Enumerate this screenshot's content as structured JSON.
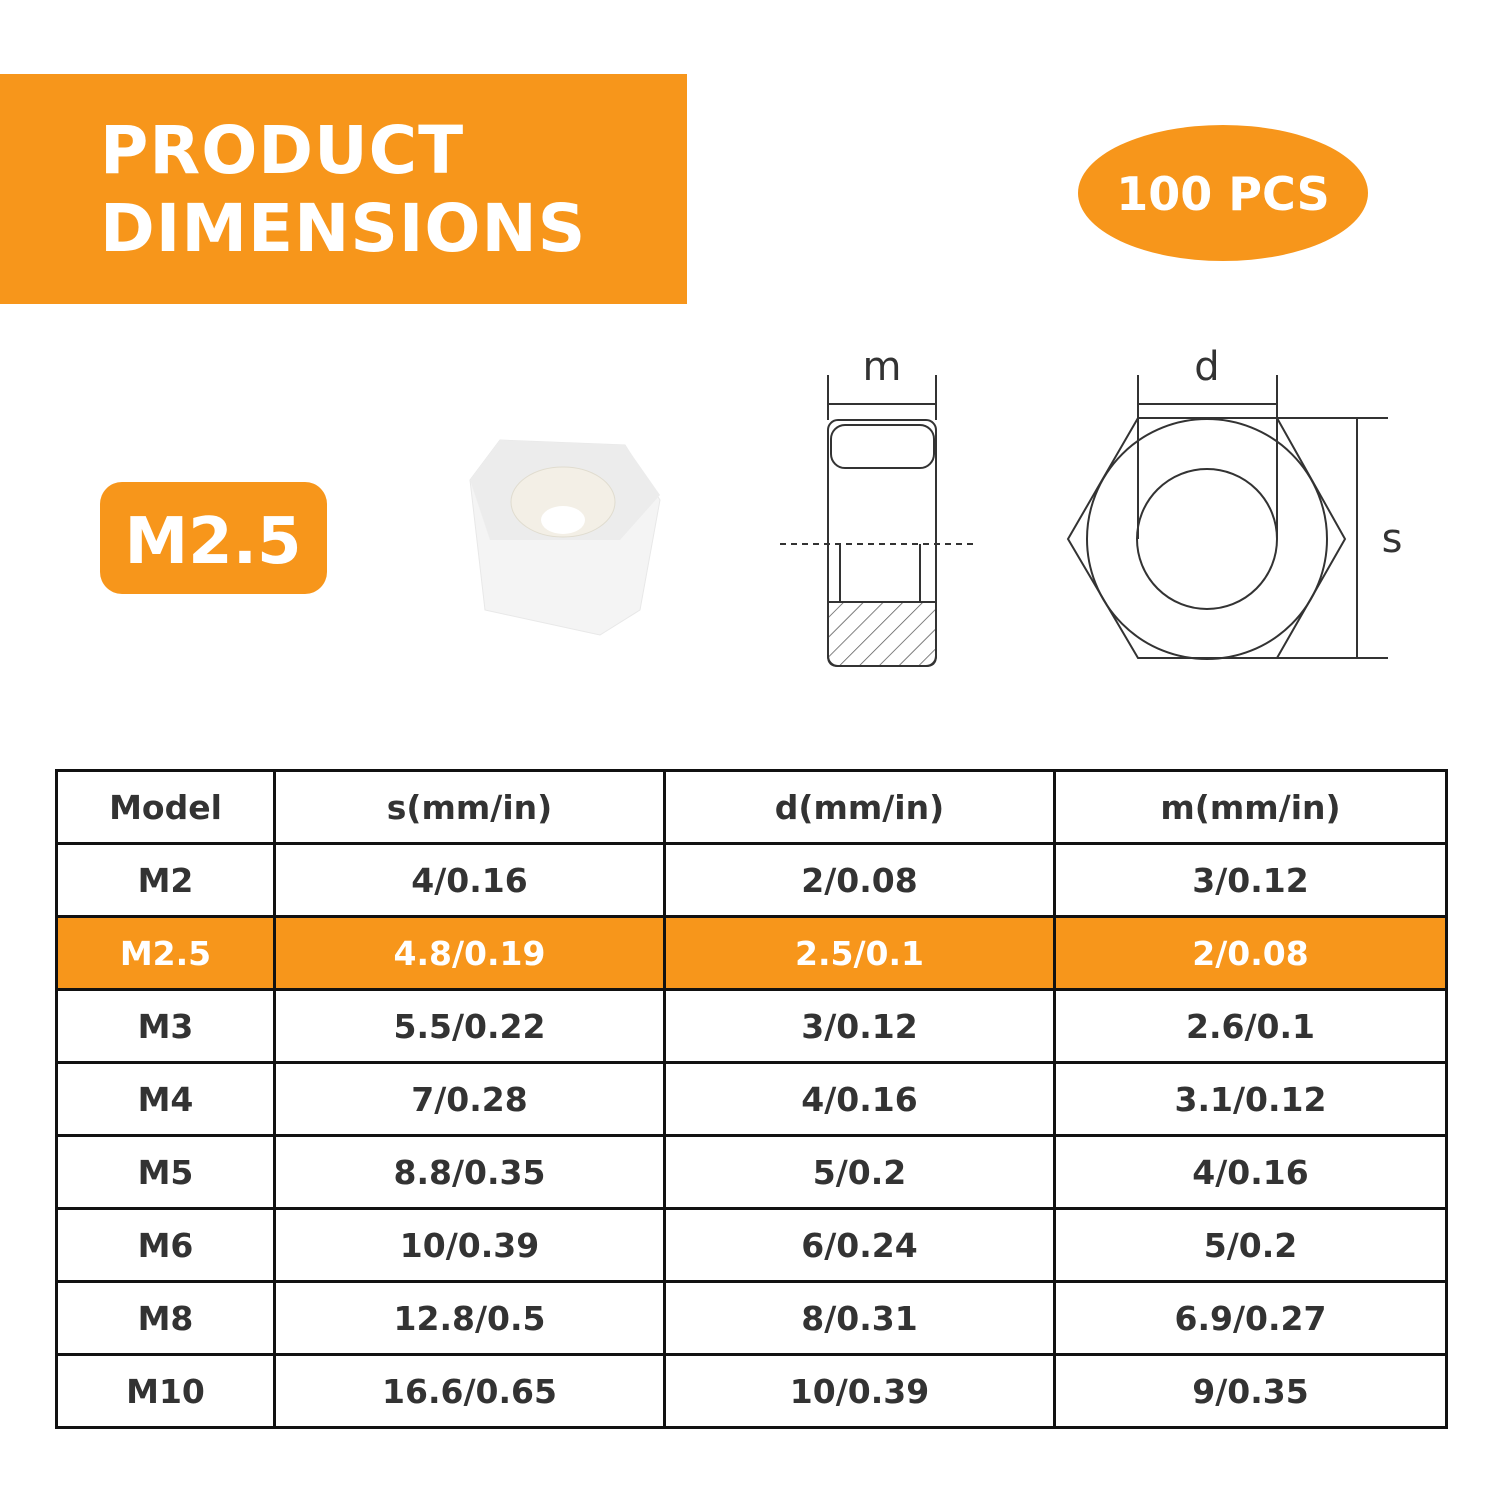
{
  "header": {
    "title_lines": [
      "PRODUCT",
      "DIMENSIONS"
    ]
  },
  "quantity_badge": "100 PCS",
  "model_badge": "M2.5",
  "diagram": {
    "side_label": "m",
    "top_label": "d",
    "width_label": "s"
  },
  "table": {
    "header": [
      "Model",
      "s(mm/in)",
      "d(mm/in)",
      "m(mm/in)"
    ],
    "rows": [
      [
        "M2",
        "4/0.16",
        "2/0.08",
        "3/0.12"
      ],
      [
        "M2.5",
        "4.8/0.19",
        "2.5/0.1",
        "2/0.08"
      ],
      [
        "M3",
        "5.5/0.22",
        "3/0.12",
        "2.6/0.1"
      ],
      [
        "M4",
        "7/0.28",
        "4/0.16",
        "3.1/0.12"
      ],
      [
        "M5",
        "8.8/0.35",
        "5/0.2",
        "4/0.16"
      ],
      [
        "M6",
        "10/0.39",
        "6/0.24",
        "5/0.2"
      ],
      [
        "M8",
        "12.8/0.5",
        "8/0.31",
        "6.9/0.27"
      ],
      [
        "M10",
        "16.6/0.65",
        "10/0.39",
        "9/0.35"
      ]
    ]
  }
}
